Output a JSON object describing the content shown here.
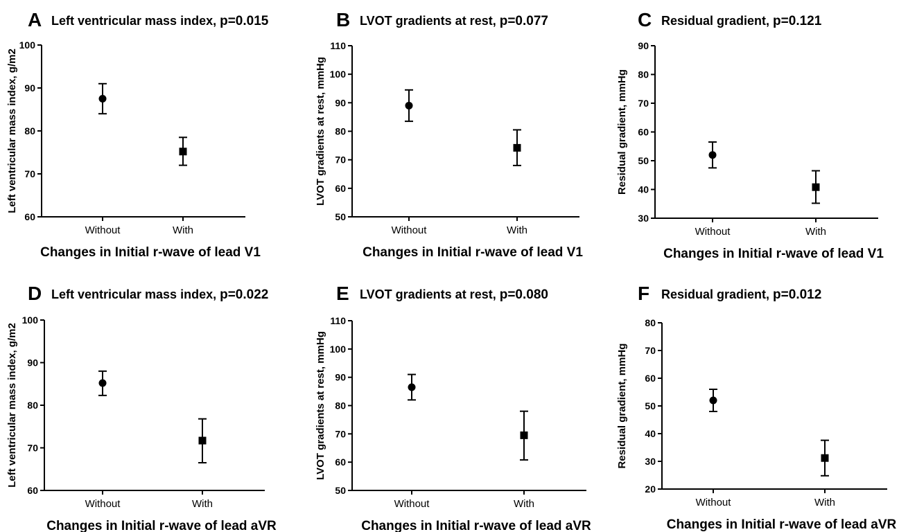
{
  "chart_data": [
    {
      "type": "scatter",
      "panel": "A",
      "title_main": "Left ventricular mass index, ",
      "title_p": "p=0.015",
      "ylabel": "Left ventricular mass index, g/m2",
      "xlabel": "Changes in Initial r-wave of lead V1",
      "categories": [
        "Without",
        "With"
      ],
      "ylim": [
        60,
        100
      ],
      "yticks": [
        60,
        70,
        80,
        90,
        100
      ],
      "markers": [
        "circle",
        "square"
      ],
      "mean": [
        87.5,
        75.2
      ],
      "lower": [
        84.0,
        72.0
      ],
      "upper": [
        91.0,
        78.5
      ]
    },
    {
      "type": "scatter",
      "panel": "B",
      "title_main": "LVOT gradients at rest, ",
      "title_p": "p=0.077",
      "ylabel": "LVOT gradients at rest, mmHg",
      "xlabel": "Changes in Initial r-wave of lead V1",
      "categories": [
        "Without",
        "With"
      ],
      "ylim": [
        50,
        110
      ],
      "yticks": [
        50,
        60,
        70,
        80,
        90,
        100,
        110
      ],
      "markers": [
        "circle",
        "square"
      ],
      "mean": [
        89.0,
        74.2
      ],
      "lower": [
        83.5,
        68.0
      ],
      "upper": [
        94.5,
        80.5
      ]
    },
    {
      "type": "scatter",
      "panel": "C",
      "title_main": "Residual gradient, ",
      "title_p": "p=0.121",
      "ylabel": "Residual gradient, mmHg",
      "xlabel": "Changes in Initial r-wave of lead V1",
      "categories": [
        "Without",
        "With"
      ],
      "ylim": [
        30,
        90
      ],
      "yticks": [
        30,
        40,
        50,
        60,
        70,
        80,
        90
      ],
      "markers": [
        "circle",
        "square"
      ],
      "mean": [
        52.0,
        40.8
      ],
      "lower": [
        47.5,
        35.2
      ],
      "upper": [
        56.5,
        46.5
      ]
    },
    {
      "type": "scatter",
      "panel": "D",
      "title_main": "Left ventricular mass index, ",
      "title_p": "p=0.022",
      "ylabel": "Left ventricular mass index, g/m2",
      "xlabel": "Changes in Initial r-wave of lead aVR",
      "categories": [
        "Without",
        "With"
      ],
      "ylim": [
        60,
        100
      ],
      "yticks": [
        60,
        70,
        80,
        90,
        100
      ],
      "markers": [
        "circle",
        "square"
      ],
      "mean": [
        85.2,
        71.7
      ],
      "lower": [
        82.3,
        66.5
      ],
      "upper": [
        88.0,
        76.8
      ]
    },
    {
      "type": "scatter",
      "panel": "E",
      "title_main": "LVOT gradients at rest, ",
      "title_p": "p=0.080",
      "ylabel": "LVOT gradients at rest, mmHg",
      "xlabel": "Changes in Initial r-wave of lead aVR",
      "categories": [
        "Without",
        "With"
      ],
      "ylim": [
        50,
        110
      ],
      "yticks": [
        50,
        60,
        70,
        80,
        90,
        100,
        110
      ],
      "markers": [
        "circle",
        "square"
      ],
      "mean": [
        86.5,
        69.5
      ],
      "lower": [
        82.0,
        60.8
      ],
      "upper": [
        91.0,
        78.0
      ]
    },
    {
      "type": "scatter",
      "panel": "F",
      "title_main": "Residual gradient, ",
      "title_p": "p=0.012",
      "ylabel": "Residual gradient, mmHg",
      "xlabel": "Changes in Initial r-wave of lead aVR",
      "categories": [
        "Without",
        "With"
      ],
      "ylim": [
        20,
        80
      ],
      "yticks": [
        20,
        30,
        40,
        50,
        60,
        70,
        80
      ],
      "markers": [
        "circle",
        "square"
      ],
      "mean": [
        52.0,
        31.2
      ],
      "lower": [
        48.0,
        24.8
      ],
      "upper": [
        56.0,
        37.6
      ]
    }
  ]
}
